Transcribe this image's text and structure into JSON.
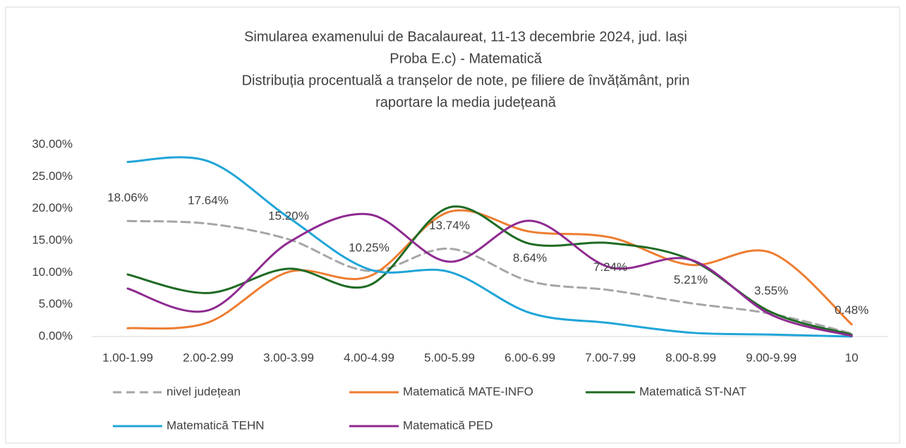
{
  "chart_data": {
    "type": "line",
    "title": [
      "Simularea examenului de Bacalaureat, 11-13 decembrie 2024, jud. Iași",
      "Proba E.c) - Matematică",
      "Distribuția procentuală a tranșelor de note, pe filiere de învățământ, prin",
      "raportare la media județeană"
    ],
    "categories": [
      "1.00-1.99",
      "2.00-2.99",
      "3.00-3.99",
      "4.00-4.99",
      "5.00-5.99",
      "6.00-6.99",
      "7.00-7.99",
      "8.00-8.99",
      "9.00-9.99",
      "10"
    ],
    "ylim": [
      0,
      30
    ],
    "yticks": [
      {
        "value": 0,
        "label": "0.00%"
      },
      {
        "value": 5,
        "label": "5.00%"
      },
      {
        "value": 10,
        "label": "10.00%"
      },
      {
        "value": 15,
        "label": "15.00%"
      },
      {
        "value": 20,
        "label": "20.00%"
      },
      {
        "value": 25,
        "label": "25.00%"
      },
      {
        "value": 30,
        "label": "30.00%"
      }
    ],
    "grid": false,
    "legend": "bottom",
    "series": [
      {
        "name": "nivel județean",
        "color": "#a6a6a6",
        "dashed": true,
        "values": [
          18.06,
          17.64,
          15.2,
          10.25,
          13.74,
          8.64,
          7.24,
          5.21,
          3.55,
          0.48
        ],
        "value_labels": [
          "18.06%",
          "17.64%",
          "15.20%",
          "10.25%",
          "13.74%",
          "8.64%",
          "7.24%",
          "5.21%",
          "3.55%",
          "0.48%"
        ]
      },
      {
        "name": "Matematică MATE-INFO",
        "color": "#ed7d31",
        "values": [
          1.3,
          2.2,
          10.1,
          9.4,
          19.5,
          16.4,
          15.5,
          11.2,
          13.1,
          1.9
        ]
      },
      {
        "name": "Matematică ST-NAT",
        "color": "#1e6b24",
        "values": [
          9.7,
          6.8,
          10.6,
          8.0,
          20.2,
          14.5,
          14.6,
          12.0,
          3.8,
          0.3
        ]
      },
      {
        "name": "Matematică TEHN",
        "color": "#20a5d8",
        "values": [
          27.3,
          27.4,
          18.6,
          10.5,
          10.1,
          3.7,
          2.1,
          0.6,
          0.3,
          0.0
        ]
      },
      {
        "name": "Matematică PED",
        "color": "#8f2a91",
        "values": [
          7.5,
          4.1,
          14.7,
          19.1,
          11.7,
          18.1,
          10.8,
          12.0,
          3.4,
          0.1
        ]
      }
    ]
  }
}
